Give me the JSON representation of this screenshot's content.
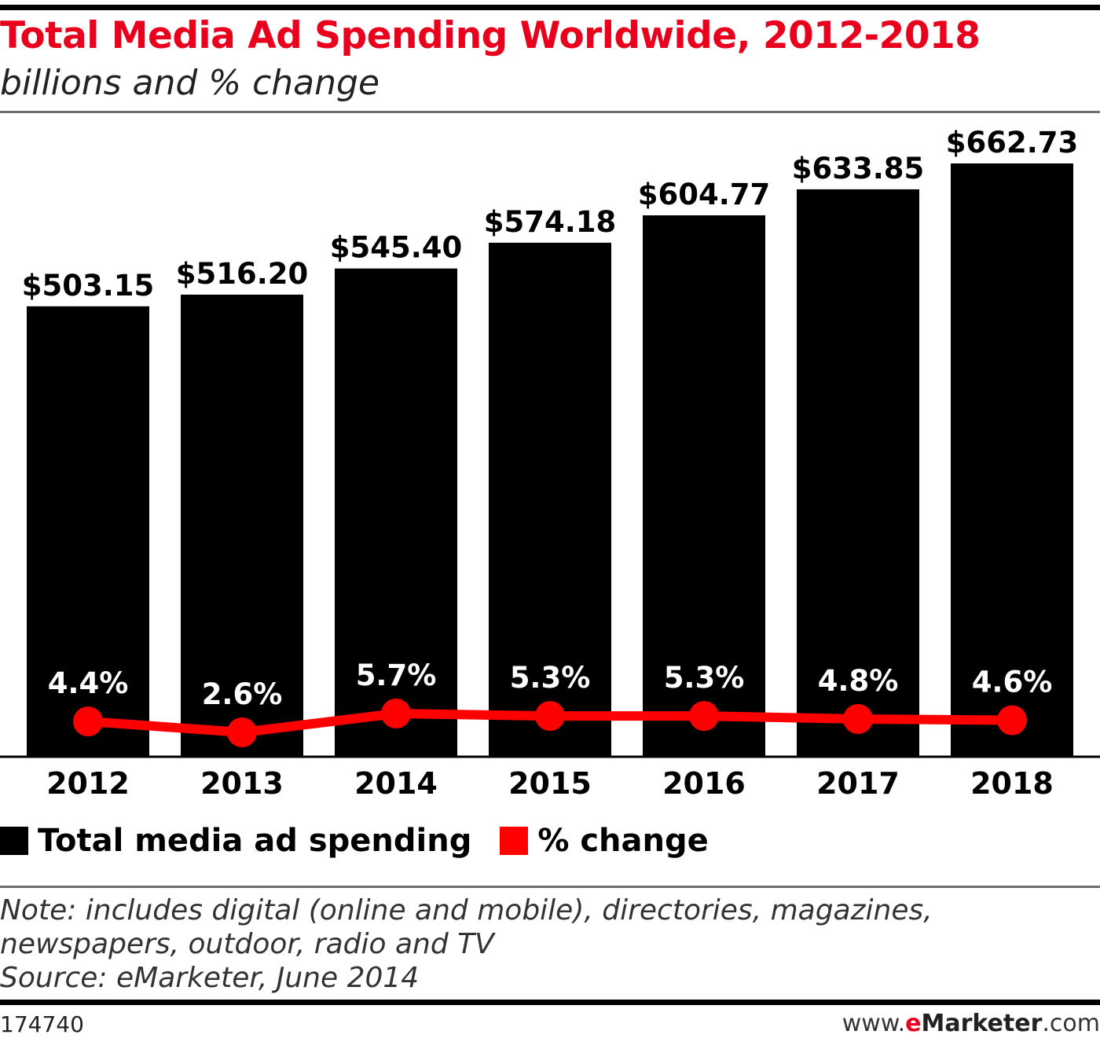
{
  "header": {
    "title": "Total Media Ad Spending Worldwide, 2012-2018",
    "subtitle": "billions and % change"
  },
  "chart_data": {
    "type": "bar",
    "title": "Total Media Ad Spending Worldwide, 2012-2018",
    "subtitle": "billions and % change",
    "categories": [
      "2012",
      "2013",
      "2014",
      "2015",
      "2016",
      "2017",
      "2018"
    ],
    "series": [
      {
        "name": "Total media ad spending",
        "type": "bar",
        "values": [
          503.15,
          516.2,
          545.4,
          574.18,
          604.77,
          633.85,
          662.73
        ],
        "labels": [
          "$503.15",
          "$516.20",
          "$545.40",
          "$574.18",
          "$604.77",
          "$633.85",
          "$662.73"
        ],
        "color": "#000000"
      },
      {
        "name": "% change",
        "type": "line",
        "values": [
          4.4,
          2.6,
          5.7,
          5.3,
          5.3,
          4.8,
          4.6
        ],
        "labels": [
          "4.4%",
          "2.6%",
          "5.7%",
          "5.3%",
          "5.3%",
          "4.8%",
          "4.6%"
        ],
        "color": "#ff0000"
      }
    ],
    "ylim": [
      0,
      662.73
    ],
    "grid": false,
    "legend": "bottom-left"
  },
  "legend": {
    "items": [
      {
        "label": "Total media ad spending",
        "color": "#000000"
      },
      {
        "label": "% change",
        "color": "#ff0000"
      }
    ]
  },
  "footer": {
    "note_line1": "Note: includes digital (online and mobile), directories, magazines,",
    "note_line2": "newspapers, outdoor, radio and TV",
    "source": "Source: eMarketer, June 2014",
    "chart_id": "174740",
    "brand_prefix": "www.",
    "brand_e": "e",
    "brand_name": "Marketer",
    "brand_suffix": ".com"
  }
}
